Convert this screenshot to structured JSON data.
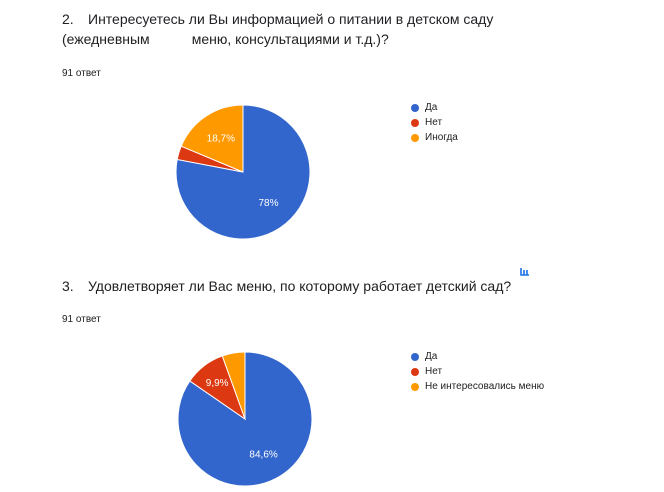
{
  "colors": {
    "blue": "#3366cc",
    "red": "#dc3912",
    "orange": "#ff9900"
  },
  "questions": [
    {
      "number": "2.",
      "text_line1": "Интересуетесь ли Вы информацией о питании в детском саду",
      "text_line2_a": "(ежедневным",
      "text_line2_b": "меню, консультациями и т.д.)?",
      "responses": "91 ответ",
      "chart_data": {
        "type": "pie",
        "categories": [
          "Да",
          "Нет",
          "Иногда"
        ],
        "values": [
          78,
          3.3,
          18.7
        ],
        "slice_labels": [
          "78%",
          "",
          "18,7%"
        ],
        "colors": [
          "#3366cc",
          "#dc3912",
          "#ff9900"
        ],
        "legend": "right"
      }
    },
    {
      "number": "3.",
      "text_line1": "Удовлетворяет ли Вас меню, по которому работает детский сад?",
      "responses": "91 ответ",
      "chart_data": {
        "type": "pie",
        "categories": [
          "Да",
          "Нет",
          "Не интересовались меню"
        ],
        "values": [
          84.6,
          9.9,
          5.5
        ],
        "slice_labels": [
          "84,6%",
          "9,9%",
          ""
        ],
        "colors": [
          "#3366cc",
          "#dc3912",
          "#ff9900"
        ],
        "legend": "right"
      }
    }
  ],
  "icons": {
    "chart_tool": "chart-resize-icon"
  }
}
